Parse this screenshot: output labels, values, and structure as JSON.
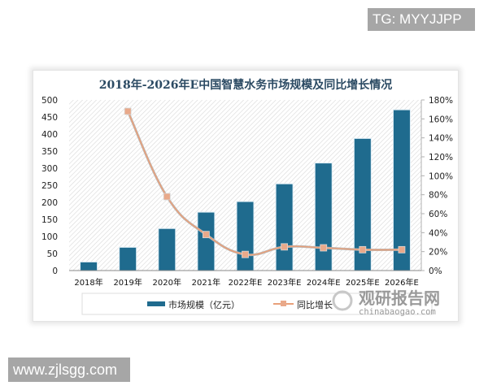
{
  "watermarks": {
    "top_right": "TG: MYYJJPP",
    "bottom_left": "www.zjlsgg.com"
  },
  "logo": {
    "name": "观研报告网",
    "url_text": "chinabaogao.com"
  },
  "colors": {
    "bar": "#1f6b8e",
    "line": "#e8a07a",
    "marker": "#e9a98a",
    "title": "#2b4a63"
  },
  "chart_data": {
    "type": "bar+line",
    "title": "2018年-2026年E中国智慧水务市场规模及同比增长情况",
    "categories": [
      "2018年",
      "2019年",
      "2020年",
      "2021年",
      "2022年E",
      "2023年E",
      "2024年E",
      "2025年E",
      "2026年E"
    ],
    "series": [
      {
        "name": "市场规模（亿元）",
        "type": "bar",
        "axis": "left",
        "values": [
          24,
          67,
          122,
          170,
          201,
          253,
          314,
          386,
          470
        ]
      },
      {
        "name": "同比增长",
        "type": "line",
        "axis": "right",
        "values": [
          null,
          168,
          78,
          38,
          17,
          25,
          24,
          22,
          22
        ],
        "unit": "%"
      }
    ],
    "left_axis": {
      "ylim": [
        0,
        500
      ],
      "ticks": [
        "0",
        "50",
        "100",
        "150",
        "200",
        "250",
        "300",
        "350",
        "400",
        "450",
        "500"
      ]
    },
    "right_axis": {
      "ylim": [
        0,
        180
      ],
      "ticks": [
        "0%",
        "20%",
        "40%",
        "60%",
        "80%",
        "100%",
        "120%",
        "140%",
        "160%",
        "180%"
      ]
    },
    "xlabel": "",
    "ylabel": "",
    "grid": false,
    "legend_position": "bottom",
    "legend": [
      "市场规模（亿元）",
      "同比增长"
    ]
  }
}
